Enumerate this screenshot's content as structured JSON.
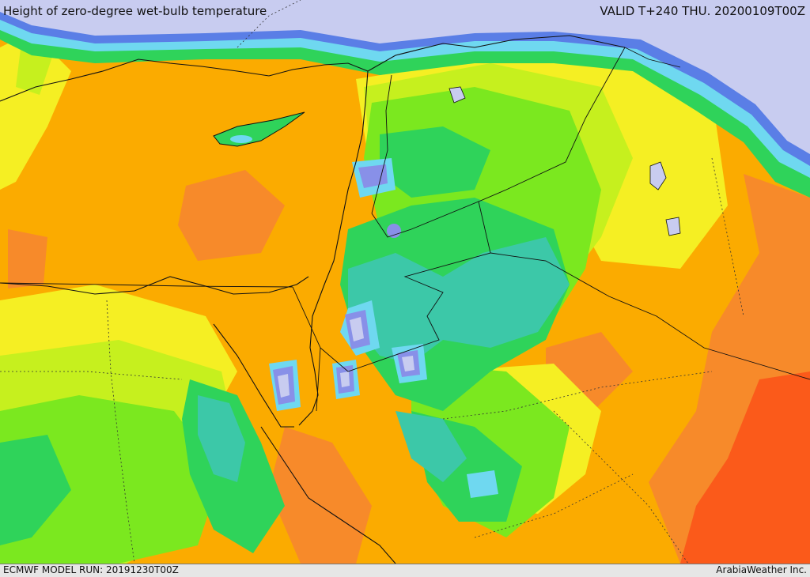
{
  "header": {
    "title": "Height of zero-degree wet-bulb temperature",
    "valid": "VALID T+240 THU. 20200109T00Z"
  },
  "footer": {
    "model_run": "ECMWF MODEL RUN: 20191230T00Z",
    "credit": "ArabiaWeather Inc."
  },
  "palette": {
    "lowest": "#c8ccf0",
    "very_low": "#8890e8",
    "low_blue": "#5a7ee6",
    "cyan": "#6fd8f0",
    "teal": "#3cc8a8",
    "green": "#2fd35a",
    "light_green": "#7be81f",
    "yellow_green": "#c6f01e",
    "yellow": "#f5ef23",
    "gold": "#fbc21a",
    "orange": "#fbab00",
    "dark_orange": "#f78a2a",
    "red_orange": "#fb5a1a"
  }
}
